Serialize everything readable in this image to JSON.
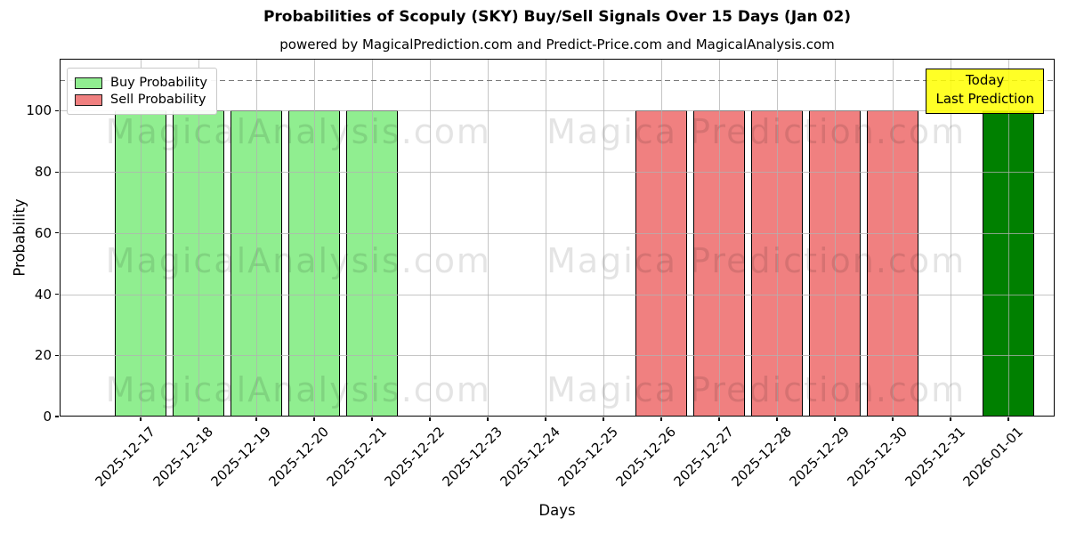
{
  "chart_data": {
    "type": "bar",
    "title": "Probabilities of Scopuly (SKY) Buy/Sell Signals Over 15 Days (Jan 02)",
    "subtitle": "powered by MagicalPrediction.com and Predict-Price.com and MagicalAnalysis.com",
    "xlabel": "Days",
    "ylabel": "Probability",
    "categories": [
      "2025-12-17",
      "2025-12-18",
      "2025-12-19",
      "2025-12-20",
      "2025-12-21",
      "2025-12-22",
      "2025-12-23",
      "2025-12-24",
      "2025-12-25",
      "2025-12-26",
      "2025-12-27",
      "2025-12-28",
      "2025-12-29",
      "2025-12-30",
      "2025-12-31",
      "2026-01-01"
    ],
    "series": [
      {
        "name": "Buy Probability",
        "color": "#90ee90",
        "values": [
          100,
          100,
          100,
          100,
          100,
          0,
          0,
          0,
          0,
          0,
          0,
          0,
          0,
          0,
          0,
          0
        ]
      },
      {
        "name": "Sell Probability",
        "color": "#f08080",
        "values": [
          0,
          0,
          0,
          0,
          0,
          0,
          0,
          0,
          0,
          100,
          100,
          100,
          100,
          100,
          0,
          0
        ]
      },
      {
        "name": "Today Last Prediction",
        "color": "#008000",
        "values": [
          0,
          0,
          0,
          0,
          0,
          0,
          0,
          0,
          0,
          0,
          0,
          0,
          0,
          0,
          0,
          100
        ]
      }
    ],
    "ylim": [
      0,
      117
    ],
    "yticks": [
      0,
      20,
      40,
      60,
      80,
      100
    ],
    "grid": true,
    "legend": {
      "position": "upper-left",
      "entries": [
        {
          "label": "Buy Probability",
          "color": "#90ee90"
        },
        {
          "label": "Sell Probability",
          "color": "#f08080"
        }
      ]
    },
    "threshold_line": {
      "y": 110,
      "style": "dashed",
      "color": "#7a7a7a"
    },
    "annotation": {
      "lines": [
        "Today",
        "Last Prediction"
      ],
      "bg_color": "#ffff00",
      "category": "2026-01-01"
    },
    "watermarks": [
      "MagicalAnalysis.com",
      "Magica Prediction.com"
    ]
  }
}
